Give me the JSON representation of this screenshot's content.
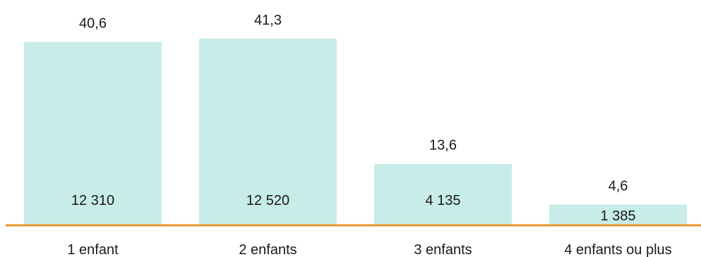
{
  "chart_data": {
    "type": "bar",
    "categories": [
      "1 enfant",
      "2 enfants",
      "3 enfants",
      "4 enfants ou plus"
    ],
    "values": [
      40.6,
      41.3,
      13.6,
      4.6
    ],
    "value_labels": [
      "40,6",
      "41,3",
      "13,6",
      "4,6"
    ],
    "counts": [
      "12 310",
      "12 520",
      "4 135",
      "1 385"
    ],
    "title": "",
    "xlabel": "",
    "ylabel": "",
    "ylim": [
      0,
      41.3
    ],
    "grid": false,
    "colors": {
      "bar": "#c8ece7",
      "axis": "#e8962e"
    }
  }
}
